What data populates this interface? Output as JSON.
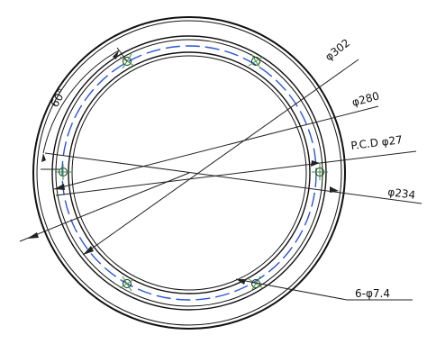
{
  "dimensions": {
    "outer_diameter": "φ302",
    "inner_step_diameter": "φ280",
    "pcd": "P.C.D φ27",
    "bore_diameter": "φ234",
    "holes": "6-φ7.4",
    "angle": "60°"
  },
  "colors": {
    "outline": "#111111",
    "pcd_centerline": "#2b55d6",
    "hole_center_mark": "#2e9b2e"
  }
}
